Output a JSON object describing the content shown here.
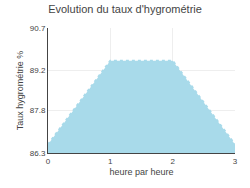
{
  "chart_data": {
    "type": "area",
    "title": "Evolution du taux d'hygrométrie",
    "xlabel": "heure par heure",
    "ylabel": "Taux hygrométrie %",
    "x": [
      0,
      1,
      2,
      3
    ],
    "values": [
      86.6,
      89.55,
      89.55,
      86.6
    ],
    "color": "#a8daea",
    "line_style": "dotted",
    "xlim": [
      0,
      3
    ],
    "xticks": [
      0,
      1,
      2,
      3
    ],
    "ylim": [
      86.3,
      90.7
    ],
    "yticks": [
      86.3,
      87.8,
      89.2,
      90.7
    ],
    "grid": true
  }
}
